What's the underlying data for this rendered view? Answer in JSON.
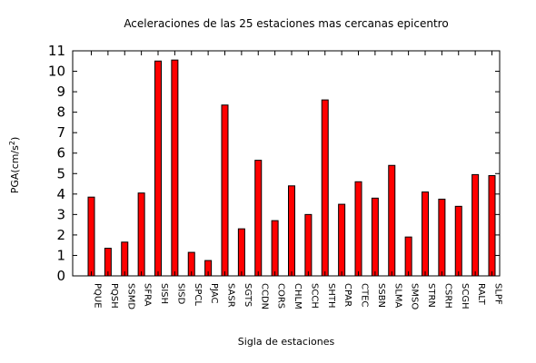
{
  "chart_data": {
    "type": "bar",
    "title": "Aceleraciones de las 25 estaciones mas cercanas epicentro",
    "xlabel": "Sigla de estaciones",
    "ylabel_main": "PGA(cm/s",
    "ylabel_sup": "2",
    "ylabel_end": ")",
    "categories": [
      "PQUE",
      "PQSH",
      "SSMD",
      "SFRA",
      "SISH",
      "SISD",
      "SPCL",
      "PJAC",
      "SASR",
      "SGTS",
      "CCDN",
      "CORS",
      "CHLM",
      "SCCH",
      "SHTH",
      "CPAR",
      "CTEC",
      "SSBN",
      "SLMA",
      "SMSO",
      "STRN",
      "CSRH",
      "SCGH",
      "RALT",
      "SLPF"
    ],
    "values": [
      3.85,
      1.35,
      1.65,
      4.05,
      10.5,
      10.55,
      1.15,
      0.75,
      8.35,
      2.3,
      5.65,
      2.7,
      4.4,
      3.0,
      8.6,
      3.5,
      4.6,
      3.8,
      5.4,
      1.9,
      4.1,
      3.75,
      3.4,
      4.95,
      4.9
    ],
    "ylim": [
      0,
      11
    ],
    "yticks": [
      "0",
      "1",
      "2",
      "3",
      "4",
      "5",
      "6",
      "7",
      "8",
      "9",
      "10",
      "11"
    ],
    "bar_color": "#ff0000",
    "grid": false,
    "legend": "none"
  }
}
